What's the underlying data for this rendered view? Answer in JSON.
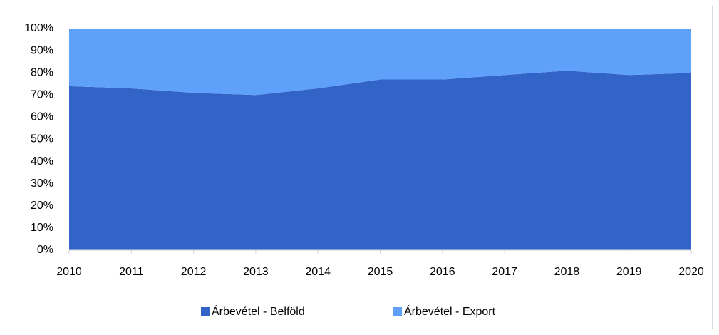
{
  "chart_data": {
    "type": "area",
    "stacked": true,
    "categories": [
      "2010",
      "2011",
      "2012",
      "2013",
      "2014",
      "2015",
      "2016",
      "2017",
      "2018",
      "2019",
      "2020"
    ],
    "series": [
      {
        "name": "Árbevétel - Belföld",
        "color": "#3264c8",
        "values": [
          74,
          73,
          71,
          70,
          73,
          77,
          77,
          79,
          81,
          79,
          80
        ]
      },
      {
        "name": "Árbevétel - Export",
        "color": "#5fa0fa",
        "values": [
          26,
          27,
          29,
          30,
          27,
          23,
          23,
          21,
          19,
          21,
          20
        ]
      }
    ],
    "ylim": [
      0,
      100
    ],
    "yticks": [
      {
        "value": 0,
        "label": "0%"
      },
      {
        "value": 10,
        "label": "10%"
      },
      {
        "value": 20,
        "label": "20%"
      },
      {
        "value": 30,
        "label": "30%"
      },
      {
        "value": 40,
        "label": "40%"
      },
      {
        "value": 50,
        "label": "50%"
      },
      {
        "value": 60,
        "label": "60%"
      },
      {
        "value": 70,
        "label": "70%"
      },
      {
        "value": 80,
        "label": "80%"
      },
      {
        "value": 90,
        "label": "90%"
      },
      {
        "value": 100,
        "label": "100%"
      }
    ],
    "legend": "bottom"
  }
}
